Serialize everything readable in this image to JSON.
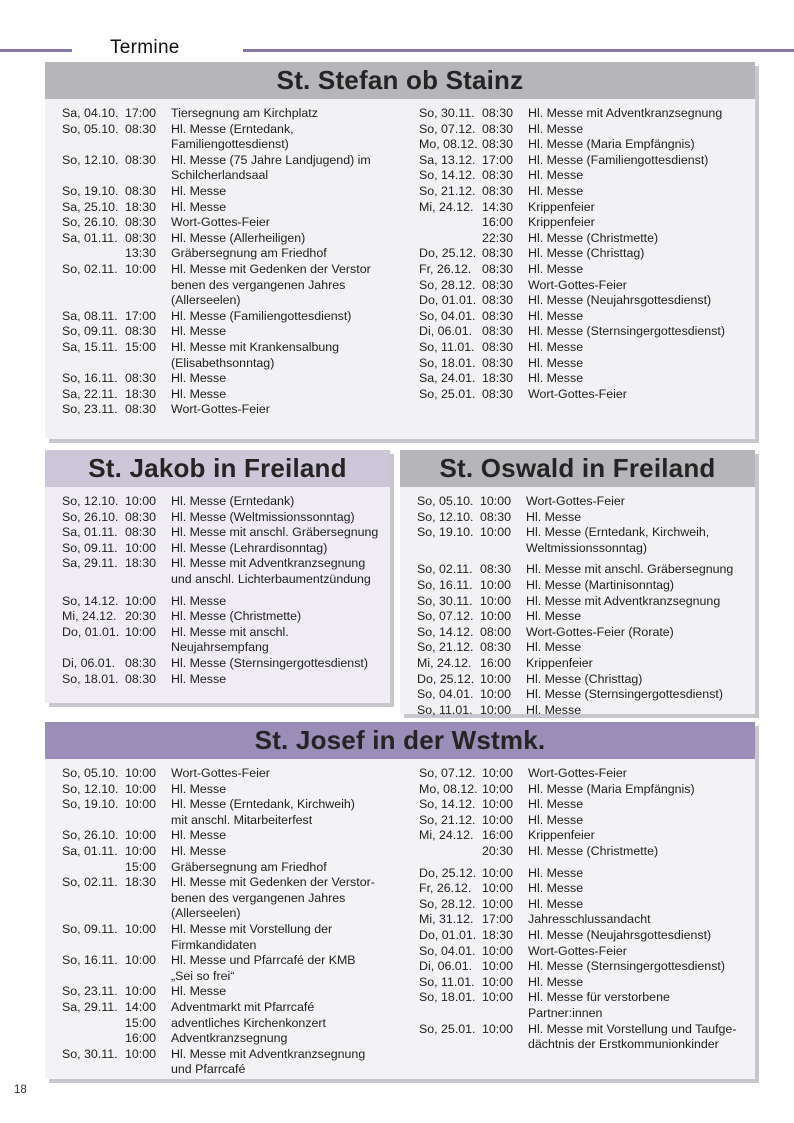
{
  "header": {
    "title": "Termine"
  },
  "footer": {
    "page_number": "18"
  },
  "colors": {
    "accent_purple_rule": "#8475a5",
    "header_bar_gray": "#b6b5b9",
    "header_bar_lavender": "#cdc6d9",
    "header_bar_purple": "#9a8db8",
    "box_background": "#f2f1f3",
    "text": "#1e1e1e"
  },
  "sections": [
    {
      "title": "St. Stefan ob Stainz",
      "columns": [
        [
          {
            "date": "Sa, 04.10.",
            "time": "17:00",
            "desc": "Tiersegnung am Kirchplatz"
          },
          {
            "date": "So, 05.10.",
            "time": "08:30",
            "desc": "Hl. Messe (Erntedank,\nFamiliengottesdienst)"
          },
          {
            "date": "So, 12.10.",
            "time": "08:30",
            "desc": "Hl. Messe (75 Jahre Landjugend) im\nSchilcherlandsaal"
          },
          {
            "date": "So, 19.10.",
            "time": "08:30",
            "desc": "Hl. Messe"
          },
          {
            "date": "Sa, 25.10.",
            "time": "18:30",
            "desc": "Hl. Messe"
          },
          {
            "date": "So, 26.10.",
            "time": "08:30",
            "desc": "Wort-Gottes-Feier"
          },
          {
            "date": "Sa, 01.11.",
            "time": "08:30",
            "desc": "Hl. Messe (Allerheiligen)"
          },
          {
            "date": "",
            "time": "13:30",
            "desc": "Gräbersegnung am Friedhof"
          },
          {
            "date": "So, 02.11.",
            "time": "10:00",
            "desc": "Hl. Messe mit Gedenken der Verstor\nbenen des vergangenen Jahres\n(Allerseelen)"
          },
          {
            "date": "Sa, 08.11.",
            "time": "17:00",
            "desc": "Hl. Messe (Familiengottesdienst)"
          },
          {
            "date": "So, 09.11.",
            "time": "08:30",
            "desc": "Hl. Messe"
          },
          {
            "date": "Sa, 15.11.",
            "time": "15:00",
            "desc": "Hl. Messe mit Krankensalbung\n(Elisabethsonntag)"
          },
          {
            "date": "So, 16.11.",
            "time": "08:30",
            "desc": "Hl. Messe"
          },
          {
            "date": "Sa, 22.11.",
            "time": "18:30",
            "desc": "Hl. Messe"
          },
          {
            "date": "So, 23.11.",
            "time": "08:30",
            "desc": "Wort-Gottes-Feier"
          }
        ],
        [
          {
            "date": "So, 30.11.",
            "time": "08:30",
            "desc": "Hl. Messe mit Adventkranzsegnung"
          },
          {
            "date": "So, 07.12.",
            "time": "08:30",
            "desc": "Hl. Messe"
          },
          {
            "date": "Mo, 08.12.",
            "time": "08:30",
            "desc": "Hl. Messe (Maria Empfängnis)"
          },
          {
            "date": "Sa, 13.12.",
            "time": "17:00",
            "desc": "Hl. Messe (Familiengottesdienst)"
          },
          {
            "date": "So, 14.12.",
            "time": "08:30",
            "desc": "Hl. Messe"
          },
          {
            "date": "So, 21.12.",
            "time": "08:30",
            "desc": "Hl. Messe"
          },
          {
            "date": "Mi, 24.12.",
            "time": "14:30",
            "desc": "Krippenfeier"
          },
          {
            "date": "",
            "time": "16:00",
            "desc": "Krippenfeier"
          },
          {
            "date": "",
            "time": "22:30",
            "desc": "Hl. Messe (Christmette)"
          },
          {
            "date": "Do, 25.12.",
            "time": "08:30",
            "desc": "Hl. Messe (Christtag)"
          },
          {
            "date": "Fr, 26.12.",
            "time": "08:30",
            "desc": "Hl. Messe"
          },
          {
            "date": "So, 28.12.",
            "time": "08:30",
            "desc": "Wort-Gottes-Feier"
          },
          {
            "date": "Do, 01.01.",
            "time": "08:30",
            "desc": "Hl. Messe (Neujahrsgottesdienst)"
          },
          {
            "date": "So, 04.01.",
            "time": "08:30",
            "desc": "Hl. Messe"
          },
          {
            "date": "Di, 06.01.",
            "time": "08:30",
            "desc": "Hl. Messe (Sternsingergottesdienst)"
          },
          {
            "date": "So, 11.01.",
            "time": "08:30",
            "desc": "Hl. Messe"
          },
          {
            "date": "So, 18.01.",
            "time": "08:30",
            "desc": "Hl. Messe"
          },
          {
            "date": "Sa, 24.01.",
            "time": "18:30",
            "desc": "Hl. Messe"
          },
          {
            "date": "So, 25.01.",
            "time": "08:30",
            "desc": "Wort-Gottes-Feier"
          }
        ]
      ]
    },
    {
      "title": "St. Jakob in Freiland",
      "columns": [
        [
          {
            "date": "So, 12.10.",
            "time": "10:00",
            "desc": "Hl. Messe (Erntedank)"
          },
          {
            "date": "So, 26.10.",
            "time": "08:30",
            "desc": "Hl. Messe (Weltmissionssonntag)"
          },
          {
            "date": "Sa, 01.11.",
            "time": "08:30",
            "desc": "Hl. Messe mit anschl. Gräbersegnung"
          },
          {
            "date": "So, 09.11.",
            "time": "10:00",
            "desc": "Hl. Messe (Lehrardisonntag)"
          },
          {
            "date": "Sa, 29.11.",
            "time": "18:30",
            "desc": "Hl. Messe mit Adventkranzsegnung\nund anschl. Lichterbaumentzündung"
          },
          {
            "date": "So, 14.12.",
            "time": "10:00",
            "desc": "Hl. Messe",
            "gap": true
          },
          {
            "date": "Mi, 24.12.",
            "time": "20:30",
            "desc": "Hl. Messe (Christmette)"
          },
          {
            "date": "Do, 01.01.",
            "time": "10:00",
            "desc": "Hl. Messe mit anschl.\nNeujahrsempfang"
          },
          {
            "date": "Di, 06.01.",
            "time": "08:30",
            "desc": "Hl. Messe (Sternsingergottesdienst)"
          },
          {
            "date": "So, 18.01.",
            "time": "08:30",
            "desc": "Hl. Messe"
          }
        ]
      ]
    },
    {
      "title": "St. Oswald in Freiland",
      "columns": [
        [
          {
            "date": "So, 05.10.",
            "time": "10:00",
            "desc": "Wort-Gottes-Feier"
          },
          {
            "date": "So, 12.10.",
            "time": "08:30",
            "desc": "Hl. Messe"
          },
          {
            "date": "So, 19.10.",
            "time": "10:00",
            "desc": "Hl. Messe (Erntedank, Kirchweih,\nWeltmissionssonntag)"
          },
          {
            "date": "So, 02.11.",
            "time": "08:30",
            "desc": "Hl. Messe mit anschl. Gräbersegnung",
            "gap": true
          },
          {
            "date": "So, 16.11.",
            "time": "10:00",
            "desc": "Hl. Messe (Martinisonntag)"
          },
          {
            "date": "So, 30.11.",
            "time": "10:00",
            "desc": "Hl. Messe mit Adventkranzsegnung"
          },
          {
            "date": "So, 07.12.",
            "time": "10:00",
            "desc": "Hl. Messe"
          },
          {
            "date": "So, 14.12.",
            "time": "08:00",
            "desc": "Wort-Gottes-Feier (Rorate)"
          },
          {
            "date": "So, 21.12.",
            "time": "08:30",
            "desc": "Hl. Messe"
          },
          {
            "date": "Mi, 24.12.",
            "time": "16:00",
            "desc": "Krippenfeier"
          },
          {
            "date": "Do, 25.12.",
            "time": "10:00",
            "desc": "Hl. Messe (Christtag)"
          },
          {
            "date": "So, 04.01.",
            "time": "10:00",
            "desc": "Hl. Messe (Sternsingergottesdienst)"
          },
          {
            "date": "So, 11.01.",
            "time": "10:00",
            "desc": "Hl. Messe"
          }
        ]
      ]
    },
    {
      "title": "St. Josef in der Wstmk.",
      "columns": [
        [
          {
            "date": "So, 05.10.",
            "time": "10:00",
            "desc": "Wort-Gottes-Feier"
          },
          {
            "date": "So, 12.10.",
            "time": "10:00",
            "desc": "Hl. Messe"
          },
          {
            "date": "So, 19.10.",
            "time": "10:00",
            "desc": "Hl. Messe (Erntedank, Kirchweih)\nmit anschl. Mitarbeiterfest"
          },
          {
            "date": "So, 26.10.",
            "time": "10:00",
            "desc": "Hl. Messe"
          },
          {
            "date": "Sa, 01.11.",
            "time": "10:00",
            "desc": "Hl. Messe"
          },
          {
            "date": "",
            "time": "15:00",
            "desc": "Gräbersegnung am Friedhof"
          },
          {
            "date": "So, 02.11.",
            "time": "18:30",
            "desc": "Hl. Messe mit Gedenken der Verstor-\nbenen des vergangenen Jahres\n(Allerseelen)"
          },
          {
            "date": "So, 09.11.",
            "time": "10:00",
            "desc": "Hl. Messe mit Vorstellung der\nFirmkandidaten"
          },
          {
            "date": "So, 16.11.",
            "time": "10:00",
            "desc": "Hl. Messe und Pfarrcafé der KMB\n„Sei so frei“"
          },
          {
            "date": "So, 23.11.",
            "time": "10:00",
            "desc": "Hl. Messe"
          },
          {
            "date": "Sa, 29.11.",
            "time": "14:00",
            "desc": "Adventmarkt mit Pfarrcafé"
          },
          {
            "date": "",
            "time": "15:00",
            "desc": "adventliches Kirchenkonzert"
          },
          {
            "date": "",
            "time": "16:00",
            "desc": "Adventkranzsegnung"
          },
          {
            "date": "So, 30.11.",
            "time": "10:00",
            "desc": "Hl. Messe mit Adventkranzsegnung\nund Pfarrcafé"
          }
        ],
        [
          {
            "date": "So, 07.12.",
            "time": "10:00",
            "desc": "Wort-Gottes-Feier"
          },
          {
            "date": "Mo, 08.12.",
            "time": "10:00",
            "desc": "Hl. Messe (Maria Empfängnis)"
          },
          {
            "date": "So, 14.12.",
            "time": "10:00",
            "desc": "Hl. Messe"
          },
          {
            "date": "So, 21.12.",
            "time": "10:00",
            "desc": "Hl. Messe"
          },
          {
            "date": "Mi, 24.12.",
            "time": "16:00",
            "desc": "Krippenfeier"
          },
          {
            "date": "",
            "time": "20:30",
            "desc": "Hl. Messe (Christmette)"
          },
          {
            "date": "Do, 25.12.",
            "time": "10:00",
            "desc": "Hl. Messe",
            "gap": true
          },
          {
            "date": "Fr, 26.12.",
            "time": "10:00",
            "desc": "Hl. Messe"
          },
          {
            "date": "So, 28.12.",
            "time": "10:00",
            "desc": "Hl. Messe"
          },
          {
            "date": "Mi, 31.12.",
            "time": "17:00",
            "desc": "Jahresschlussandacht"
          },
          {
            "date": "Do, 01.01.",
            "time": "18:30",
            "desc": "Hl. Messe (Neujahrsgottesdienst)"
          },
          {
            "date": "So, 04.01.",
            "time": "10:00",
            "desc": "Wort-Gottes-Feier"
          },
          {
            "date": "Di, 06.01.",
            "time": "10:00",
            "desc": "Hl. Messe (Sternsingergottesdienst)"
          },
          {
            "date": "So, 11.01.",
            "time": "10:00",
            "desc": "Hl. Messe"
          },
          {
            "date": "So, 18.01.",
            "time": "10:00",
            "desc": "Hl. Messe für verstorbene\nPartner:innen"
          },
          {
            "date": "So, 25.01.",
            "time": "10:00",
            "desc": "Hl. Messe mit Vorstellung und Taufge-\ndächtnis der Erstkommunionkinder"
          }
        ]
      ]
    }
  ]
}
